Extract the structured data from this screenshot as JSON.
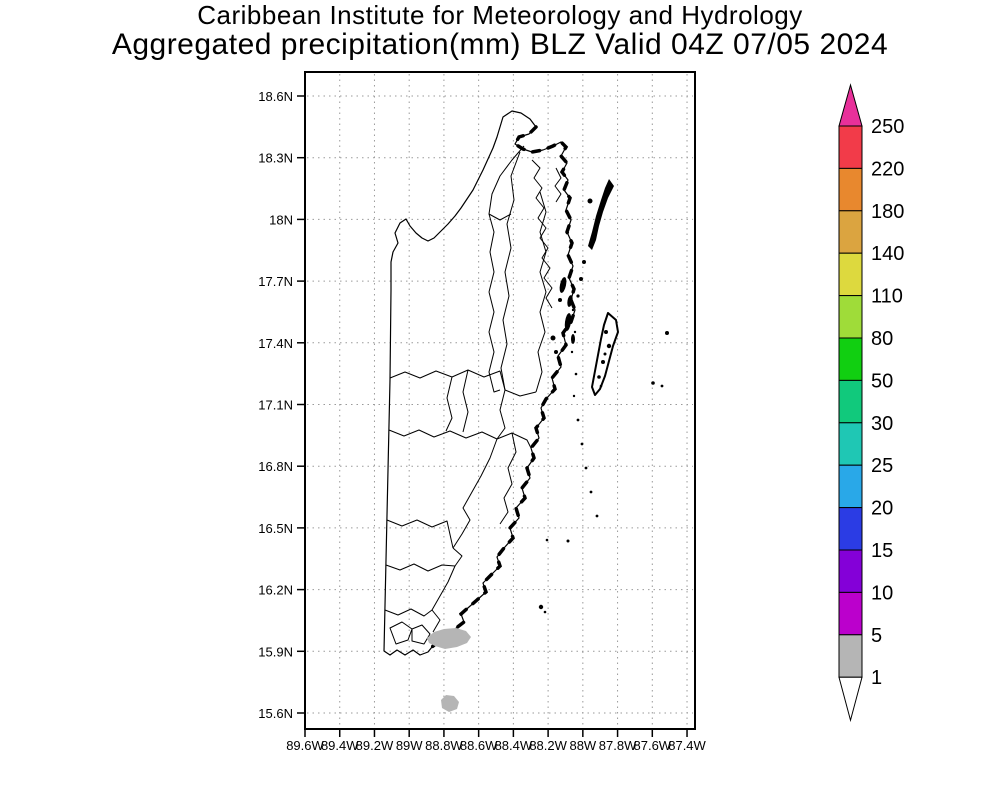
{
  "title": {
    "line1": "Caribbean Institute for Meteorology and Hydrology",
    "line2": "Aggregated precipitation(mm) BLZ Valid 04Z 07/05 2024"
  },
  "chart_data": {
    "type": "map",
    "product": "Aggregated precipitation",
    "units": "mm",
    "region_code": "BLZ",
    "region_name": "Belize",
    "valid_time": "04Z 07/05 2024",
    "lat_axis": {
      "ticks": [
        "18.6N",
        "18.3N",
        "18N",
        "17.7N",
        "17.4N",
        "17.1N",
        "16.8N",
        "16.5N",
        "16.2N",
        "15.9N",
        "15.6N"
      ],
      "range": [
        "18.6N",
        "15.6N"
      ]
    },
    "lon_axis": {
      "ticks": [
        "89.6W",
        "89.4W",
        "89.2W",
        "89W",
        "88.8W",
        "88.6W",
        "88.4W",
        "88.2W",
        "88W",
        "87.8W",
        "87.6W",
        "87.4W"
      ],
      "range": [
        "89.6W",
        "87.4W"
      ]
    },
    "grid": "dotted lat/lon grid, on",
    "colorbar": {
      "orientation": "vertical, right side, arrow caps top and bottom",
      "levels_top_to_bottom": [
        "250",
        "220",
        "180",
        "140",
        "110",
        "80",
        "50",
        "30",
        "25",
        "20",
        "15",
        "10",
        "5",
        "1"
      ],
      "segment_colors_top_to_bottom": [
        "#f23b49",
        "#e8882e",
        "#dba440",
        "#ddd93e",
        "#9fdc39",
        "#11cf11",
        "#11c97c",
        "#1fc7b4",
        "#29a8e8",
        "#2b3ce4",
        "#8400d8",
        "#bb00cc",
        "#b5b5b5"
      ],
      "above_max_color": "#e8309a",
      "below_min_color": "#ffffff"
    },
    "precipitation_features": [
      {
        "feature": "elongated shaded area just offshore of the southern coast",
        "approx_location": "15.95N, 88.95W",
        "value_mm": "1-5",
        "color": "#b5b5b5"
      },
      {
        "feature": "small round shaded spot offshore",
        "approx_location": "15.65N, 88.95W",
        "value_mm": "1-5",
        "color": "#b5b5b5"
      }
    ],
    "map_features": [
      "Belize mainland outline with internal watershed/district boundaries",
      "jagged barrier coastline",
      "Ambergris Caye",
      "Turneffe Atoll",
      "Lighthouse Reef cayes",
      "scattered reef cayes"
    ]
  }
}
